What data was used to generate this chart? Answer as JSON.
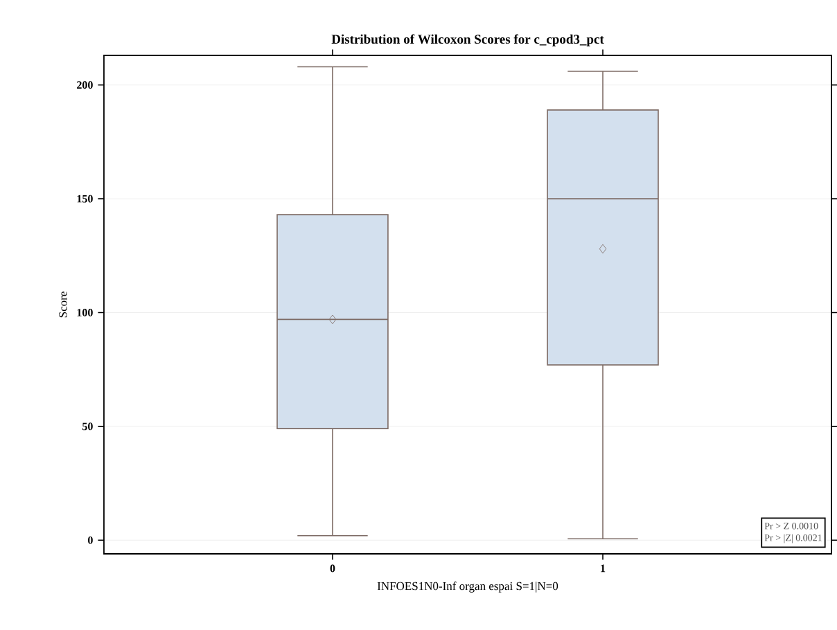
{
  "chart_data": {
    "type": "box",
    "title": "Distribution of Wilcoxon Scores for c_cpod3_pct",
    "xlabel": "INFOES1N0-Inf organ espai S=1|N=0",
    "ylabel": "Score",
    "categories": [
      "0",
      "1"
    ],
    "boxes": [
      {
        "low": 2,
        "q1": 49,
        "median": 97,
        "q3": 143,
        "high": 208,
        "mean": 97
      },
      {
        "low": 0.6,
        "q1": 77,
        "median": 150,
        "q3": 189,
        "high": 206,
        "mean": 128
      }
    ],
    "color": "#d3e0ee",
    "ylim": [
      -6,
      213
    ],
    "yticks": [
      0,
      50,
      100,
      150,
      200
    ],
    "grid": "y",
    "marker": "diamond",
    "annotations": [
      "Pr > Z  0.0010",
      "Pr > |Z|  0.0021"
    ]
  }
}
